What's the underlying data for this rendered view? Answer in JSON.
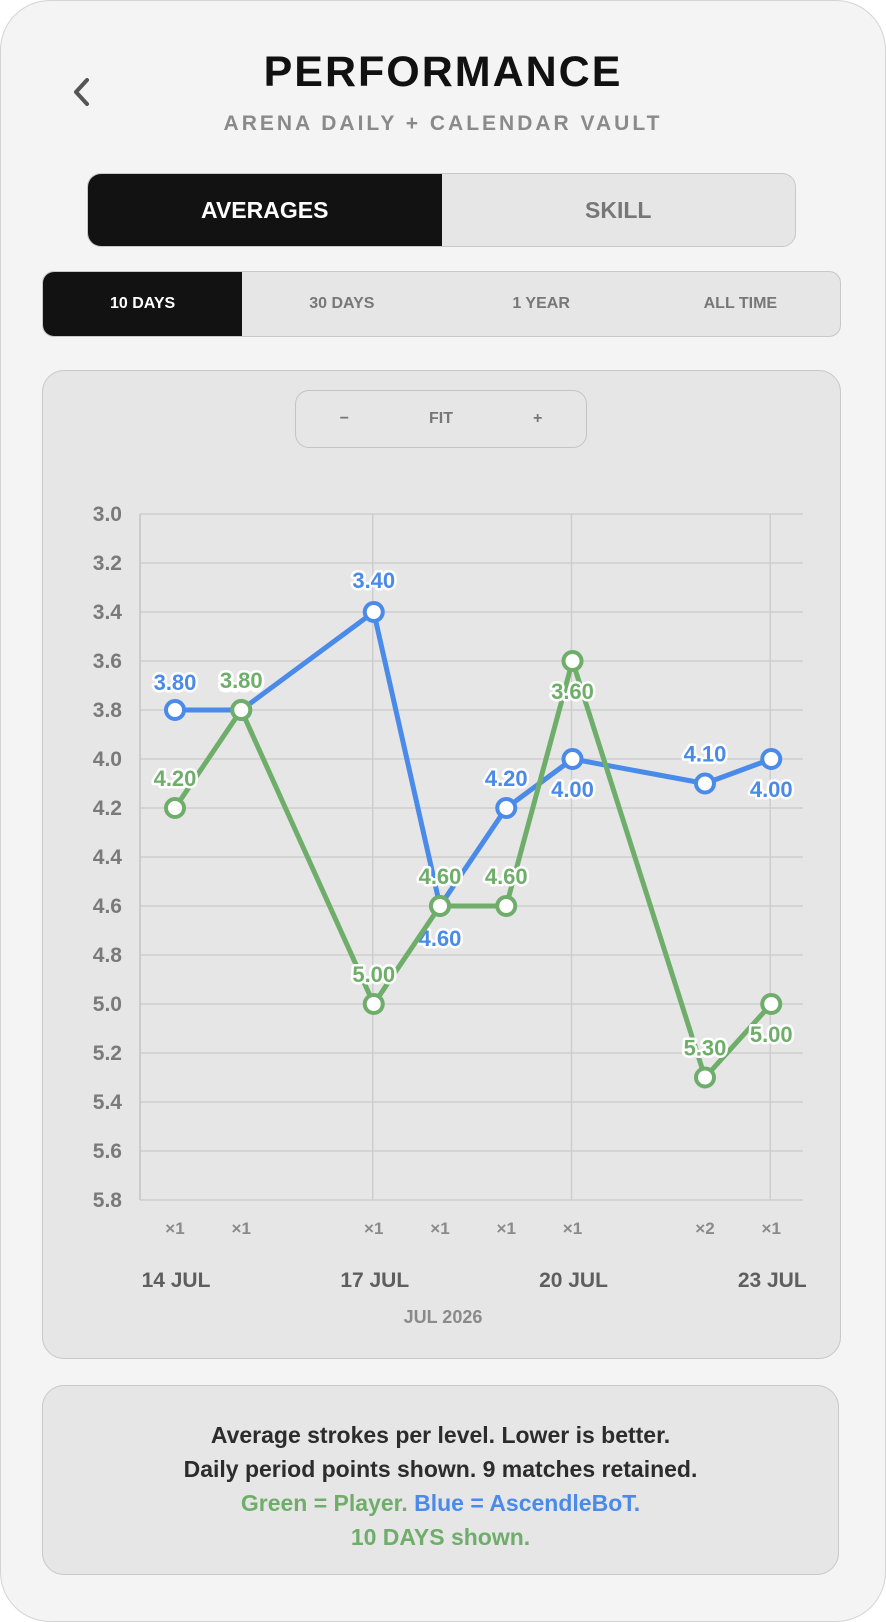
{
  "header": {
    "title": "PERFORMANCE",
    "subtitle": "ARENA DAILY + CALENDAR VAULT"
  },
  "tabs": [
    {
      "label": "AVERAGES",
      "active": true
    },
    {
      "label": "SKILL",
      "active": false
    }
  ],
  "ranges": [
    {
      "label": "10 DAYS",
      "active": true
    },
    {
      "label": "30 DAYS",
      "active": false
    },
    {
      "label": "1 YEAR",
      "active": false
    },
    {
      "label": "ALL TIME",
      "active": false
    }
  ],
  "zoom": {
    "minus": "−",
    "fit": "FIT",
    "plus": "+"
  },
  "colors": {
    "player": "#6fae6a",
    "bot": "#4a8ae8",
    "active_bg": "#121212"
  },
  "chart_data": {
    "type": "line",
    "y_inverted": true,
    "ylim": [
      3.0,
      5.8
    ],
    "y_ticks": [
      "3.0",
      "3.2",
      "3.4",
      "3.6",
      "3.8",
      "4.0",
      "4.2",
      "4.4",
      "4.6",
      "4.8",
      "5.0",
      "5.2",
      "5.4",
      "5.6",
      "5.8"
    ],
    "x_ticks": [
      "14 JUL",
      "17 JUL",
      "20 JUL",
      "23 JUL"
    ],
    "x_sublabel": "JUL 2026",
    "points": [
      {
        "date": "2026-07-14",
        "count": "×1",
        "bot": 3.8,
        "player": 4.2
      },
      {
        "date": "2026-07-15",
        "count": "×1",
        "bot": 3.8,
        "player": 3.8
      },
      {
        "date": "2026-07-17",
        "count": "×1",
        "bot": 3.4,
        "player": 5.0
      },
      {
        "date": "2026-07-18",
        "count": "×1",
        "bot": 4.6,
        "player": 4.6
      },
      {
        "date": "2026-07-19",
        "count": "×1",
        "bot": 4.2,
        "player": 4.6
      },
      {
        "date": "2026-07-20",
        "count": "×1",
        "bot": 4.0,
        "player": 3.6
      },
      {
        "date": "2026-07-22",
        "count": "×2",
        "bot": 4.1,
        "player": 5.3
      },
      {
        "date": "2026-07-23",
        "count": "×1",
        "bot": 4.0,
        "player": 5.0
      }
    ],
    "series": [
      {
        "key": "bot",
        "color": "#4a8ae8"
      },
      {
        "key": "player",
        "color": "#6fae6a"
      }
    ]
  },
  "note": {
    "line1": "Average strokes per level. Lower is better.",
    "line2": "Daily period points shown. 9 matches retained.",
    "legend_player": "Green = Player.",
    "legend_bot": "Blue = AscendleBoT.",
    "line4": "10 DAYS shown."
  }
}
